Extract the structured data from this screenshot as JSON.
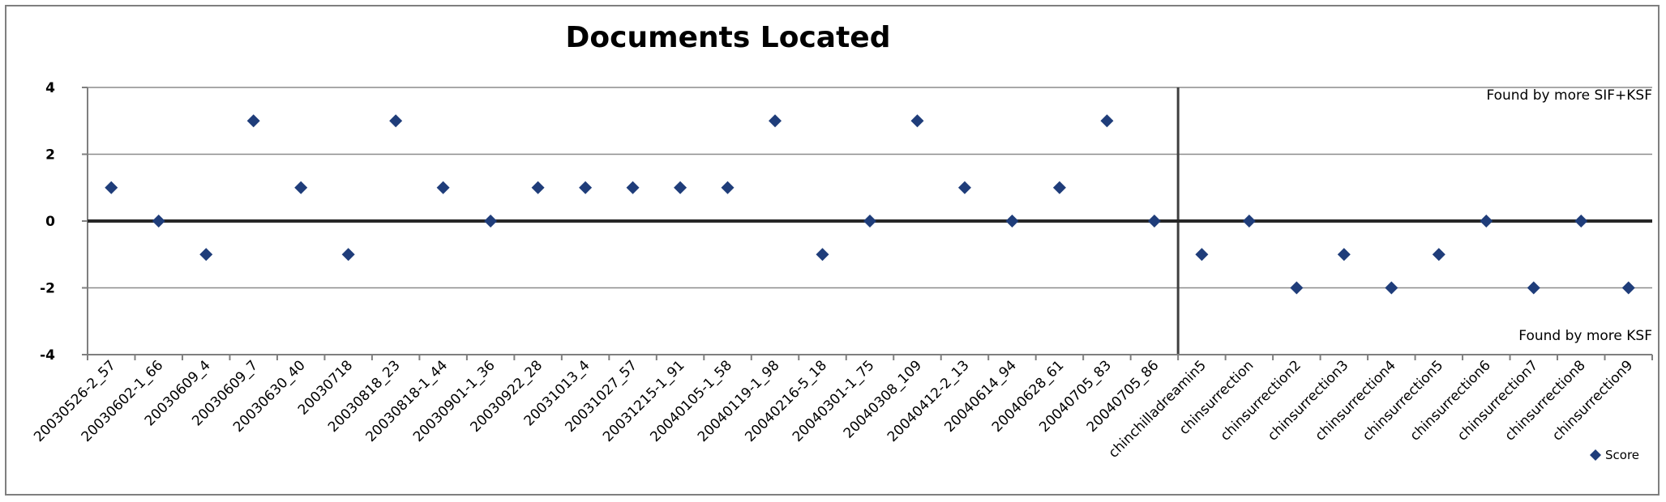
{
  "chart_data": {
    "type": "scatter",
    "title": "Documents Located",
    "xlabel": "",
    "ylabel": "",
    "ylim": [
      -4,
      4
    ],
    "yticks": [
      4,
      2,
      0,
      -2,
      -4
    ],
    "grid": true,
    "legend_position": "bottom-right",
    "marker_color": "#1f3d7a",
    "categories": [
      "20030526-2_57",
      "20030602-1_66",
      "20030609_4",
      "20030609_7",
      "20030630_40",
      "20030718",
      "20030818_23",
      "20030818-1_44",
      "20030901-1_36",
      "20030922_28",
      "20031013_4",
      "20031027_57",
      "20031215-1_91",
      "20040105-1_58",
      "20040119-1_98",
      "20040216-5_18",
      "20040301-1_75",
      "20040308_109",
      "20040412-2_13",
      "20040614_94",
      "20040628_61",
      "20040705_83",
      "20040705_86",
      "chinchilladreamin5",
      "chinsurrection",
      "chinsurrection2",
      "chinsurrection3",
      "chinsurrection4",
      "chinsurrection5",
      "chinsurrection6",
      "chinsurrection7",
      "chinsurrection8",
      "chinsurrection9"
    ],
    "series": [
      {
        "name": "Score",
        "values": [
          1,
          0,
          -1,
          3,
          1,
          -1,
          3,
          1,
          0,
          1,
          1,
          1,
          1,
          1,
          3,
          -1,
          0,
          3,
          1,
          0,
          1,
          3,
          0,
          -1,
          0,
          -2,
          -1,
          -2,
          -1,
          0,
          -2,
          0,
          -2
        ]
      }
    ],
    "separator_after_index": 22,
    "annotations": [
      "Found by more SIF+KSF",
      "Found by more KSF"
    ]
  }
}
